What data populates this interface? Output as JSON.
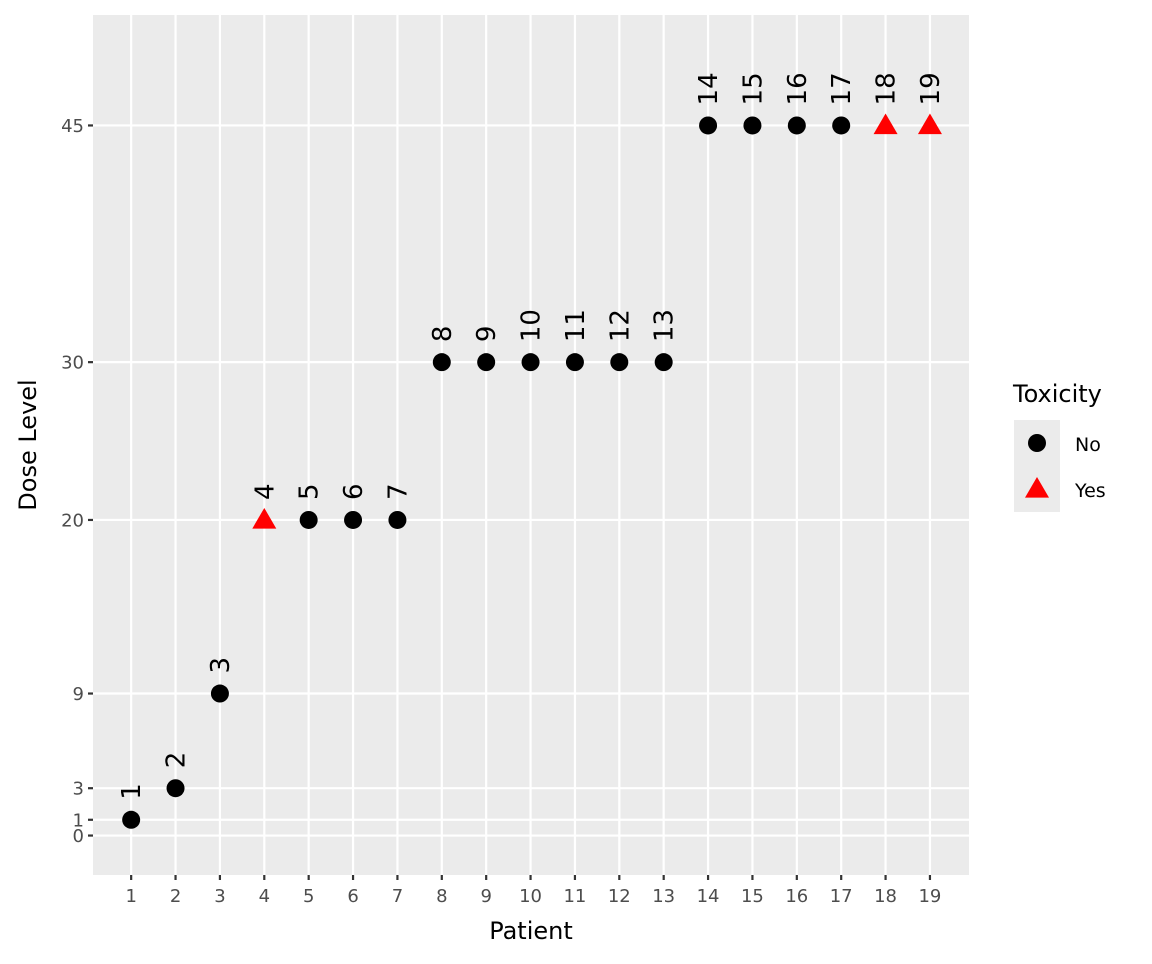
{
  "chart_data": {
    "type": "scatter",
    "title": "",
    "xlabel": "Patient",
    "ylabel": "Dose Level",
    "xlim": [
      0.14,
      19.88
    ],
    "ylim": [
      -2.5,
      52
    ],
    "x_ticks": [
      1,
      2,
      3,
      4,
      5,
      6,
      7,
      8,
      9,
      10,
      11,
      12,
      13,
      14,
      15,
      16,
      17,
      18,
      19
    ],
    "y_ticks": [
      0,
      1,
      3,
      9,
      20,
      30,
      45
    ],
    "grid": true,
    "legend": {
      "title": "Toxicity",
      "position": "right",
      "entries": [
        {
          "label": "No",
          "shape": "circle",
          "color": "#000000"
        },
        {
          "label": "Yes",
          "shape": "triangle",
          "color": "#FF0000"
        }
      ]
    },
    "points": [
      {
        "patient": 1,
        "dose": 1,
        "toxicity": "No",
        "label": "1"
      },
      {
        "patient": 2,
        "dose": 3,
        "toxicity": "No",
        "label": "2"
      },
      {
        "patient": 3,
        "dose": 9,
        "toxicity": "No",
        "label": "3"
      },
      {
        "patient": 4,
        "dose": 20,
        "toxicity": "Yes",
        "label": "4"
      },
      {
        "patient": 5,
        "dose": 20,
        "toxicity": "No",
        "label": "5"
      },
      {
        "patient": 6,
        "dose": 20,
        "toxicity": "No",
        "label": "6"
      },
      {
        "patient": 7,
        "dose": 20,
        "toxicity": "No",
        "label": "7"
      },
      {
        "patient": 8,
        "dose": 30,
        "toxicity": "No",
        "label": "8"
      },
      {
        "patient": 9,
        "dose": 30,
        "toxicity": "No",
        "label": "9"
      },
      {
        "patient": 10,
        "dose": 30,
        "toxicity": "No",
        "label": "10"
      },
      {
        "patient": 11,
        "dose": 30,
        "toxicity": "No",
        "label": "11"
      },
      {
        "patient": 12,
        "dose": 30,
        "toxicity": "No",
        "label": "12"
      },
      {
        "patient": 13,
        "dose": 30,
        "toxicity": "No",
        "label": "13"
      },
      {
        "patient": 14,
        "dose": 45,
        "toxicity": "No",
        "label": "14"
      },
      {
        "patient": 15,
        "dose": 45,
        "toxicity": "No",
        "label": "15"
      },
      {
        "patient": 16,
        "dose": 45,
        "toxicity": "No",
        "label": "16"
      },
      {
        "patient": 17,
        "dose": 45,
        "toxicity": "No",
        "label": "17"
      },
      {
        "patient": 18,
        "dose": 45,
        "toxicity": "Yes",
        "label": "18"
      },
      {
        "patient": 19,
        "dose": 45,
        "toxicity": "Yes",
        "label": "19"
      }
    ]
  }
}
